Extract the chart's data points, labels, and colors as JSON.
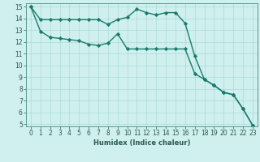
{
  "xlabel": "Humidex (Indice chaleur)",
  "ylabel": "",
  "background_color": "#cff0ee",
  "line_color": "#1a7a6a",
  "xlim": [
    -0.5,
    23.5
  ],
  "ylim": [
    4.8,
    15.3
  ],
  "yticks": [
    5,
    6,
    7,
    8,
    9,
    10,
    11,
    12,
    13,
    14,
    15
  ],
  "xticks": [
    0,
    1,
    2,
    3,
    4,
    5,
    6,
    7,
    8,
    9,
    10,
    11,
    12,
    13,
    14,
    15,
    16,
    17,
    18,
    19,
    20,
    21,
    22,
    23
  ],
  "series1_x": [
    0,
    1,
    2,
    3,
    4,
    5,
    6,
    7,
    8,
    9,
    10,
    11,
    12,
    13,
    14,
    15,
    16,
    17,
    18,
    19,
    20,
    21,
    22,
    23
  ],
  "series1_y": [
    15.0,
    13.9,
    13.9,
    13.9,
    13.9,
    13.9,
    13.9,
    13.9,
    13.5,
    13.9,
    14.1,
    14.8,
    14.5,
    14.3,
    14.5,
    14.5,
    13.6,
    10.8,
    8.8,
    8.3,
    7.7,
    7.5,
    6.3,
    4.9
  ],
  "series2_x": [
    0,
    1,
    2,
    3,
    4,
    5,
    6,
    7,
    8,
    9,
    10,
    11,
    12,
    13,
    14,
    15,
    16,
    17,
    18,
    19,
    20,
    21,
    22,
    23
  ],
  "series2_y": [
    15.0,
    12.9,
    12.4,
    12.3,
    12.2,
    12.1,
    11.8,
    11.7,
    11.9,
    12.7,
    11.4,
    11.4,
    11.4,
    11.4,
    11.4,
    11.4,
    11.4,
    9.3,
    8.8,
    8.3,
    7.7,
    7.5,
    6.3,
    4.9
  ],
  "grid_color": "#aadad6",
  "marker": "D",
  "marker_size": 2.2,
  "linewidth": 1.0,
  "tick_fontsize": 5.5,
  "xlabel_fontsize": 6.0
}
